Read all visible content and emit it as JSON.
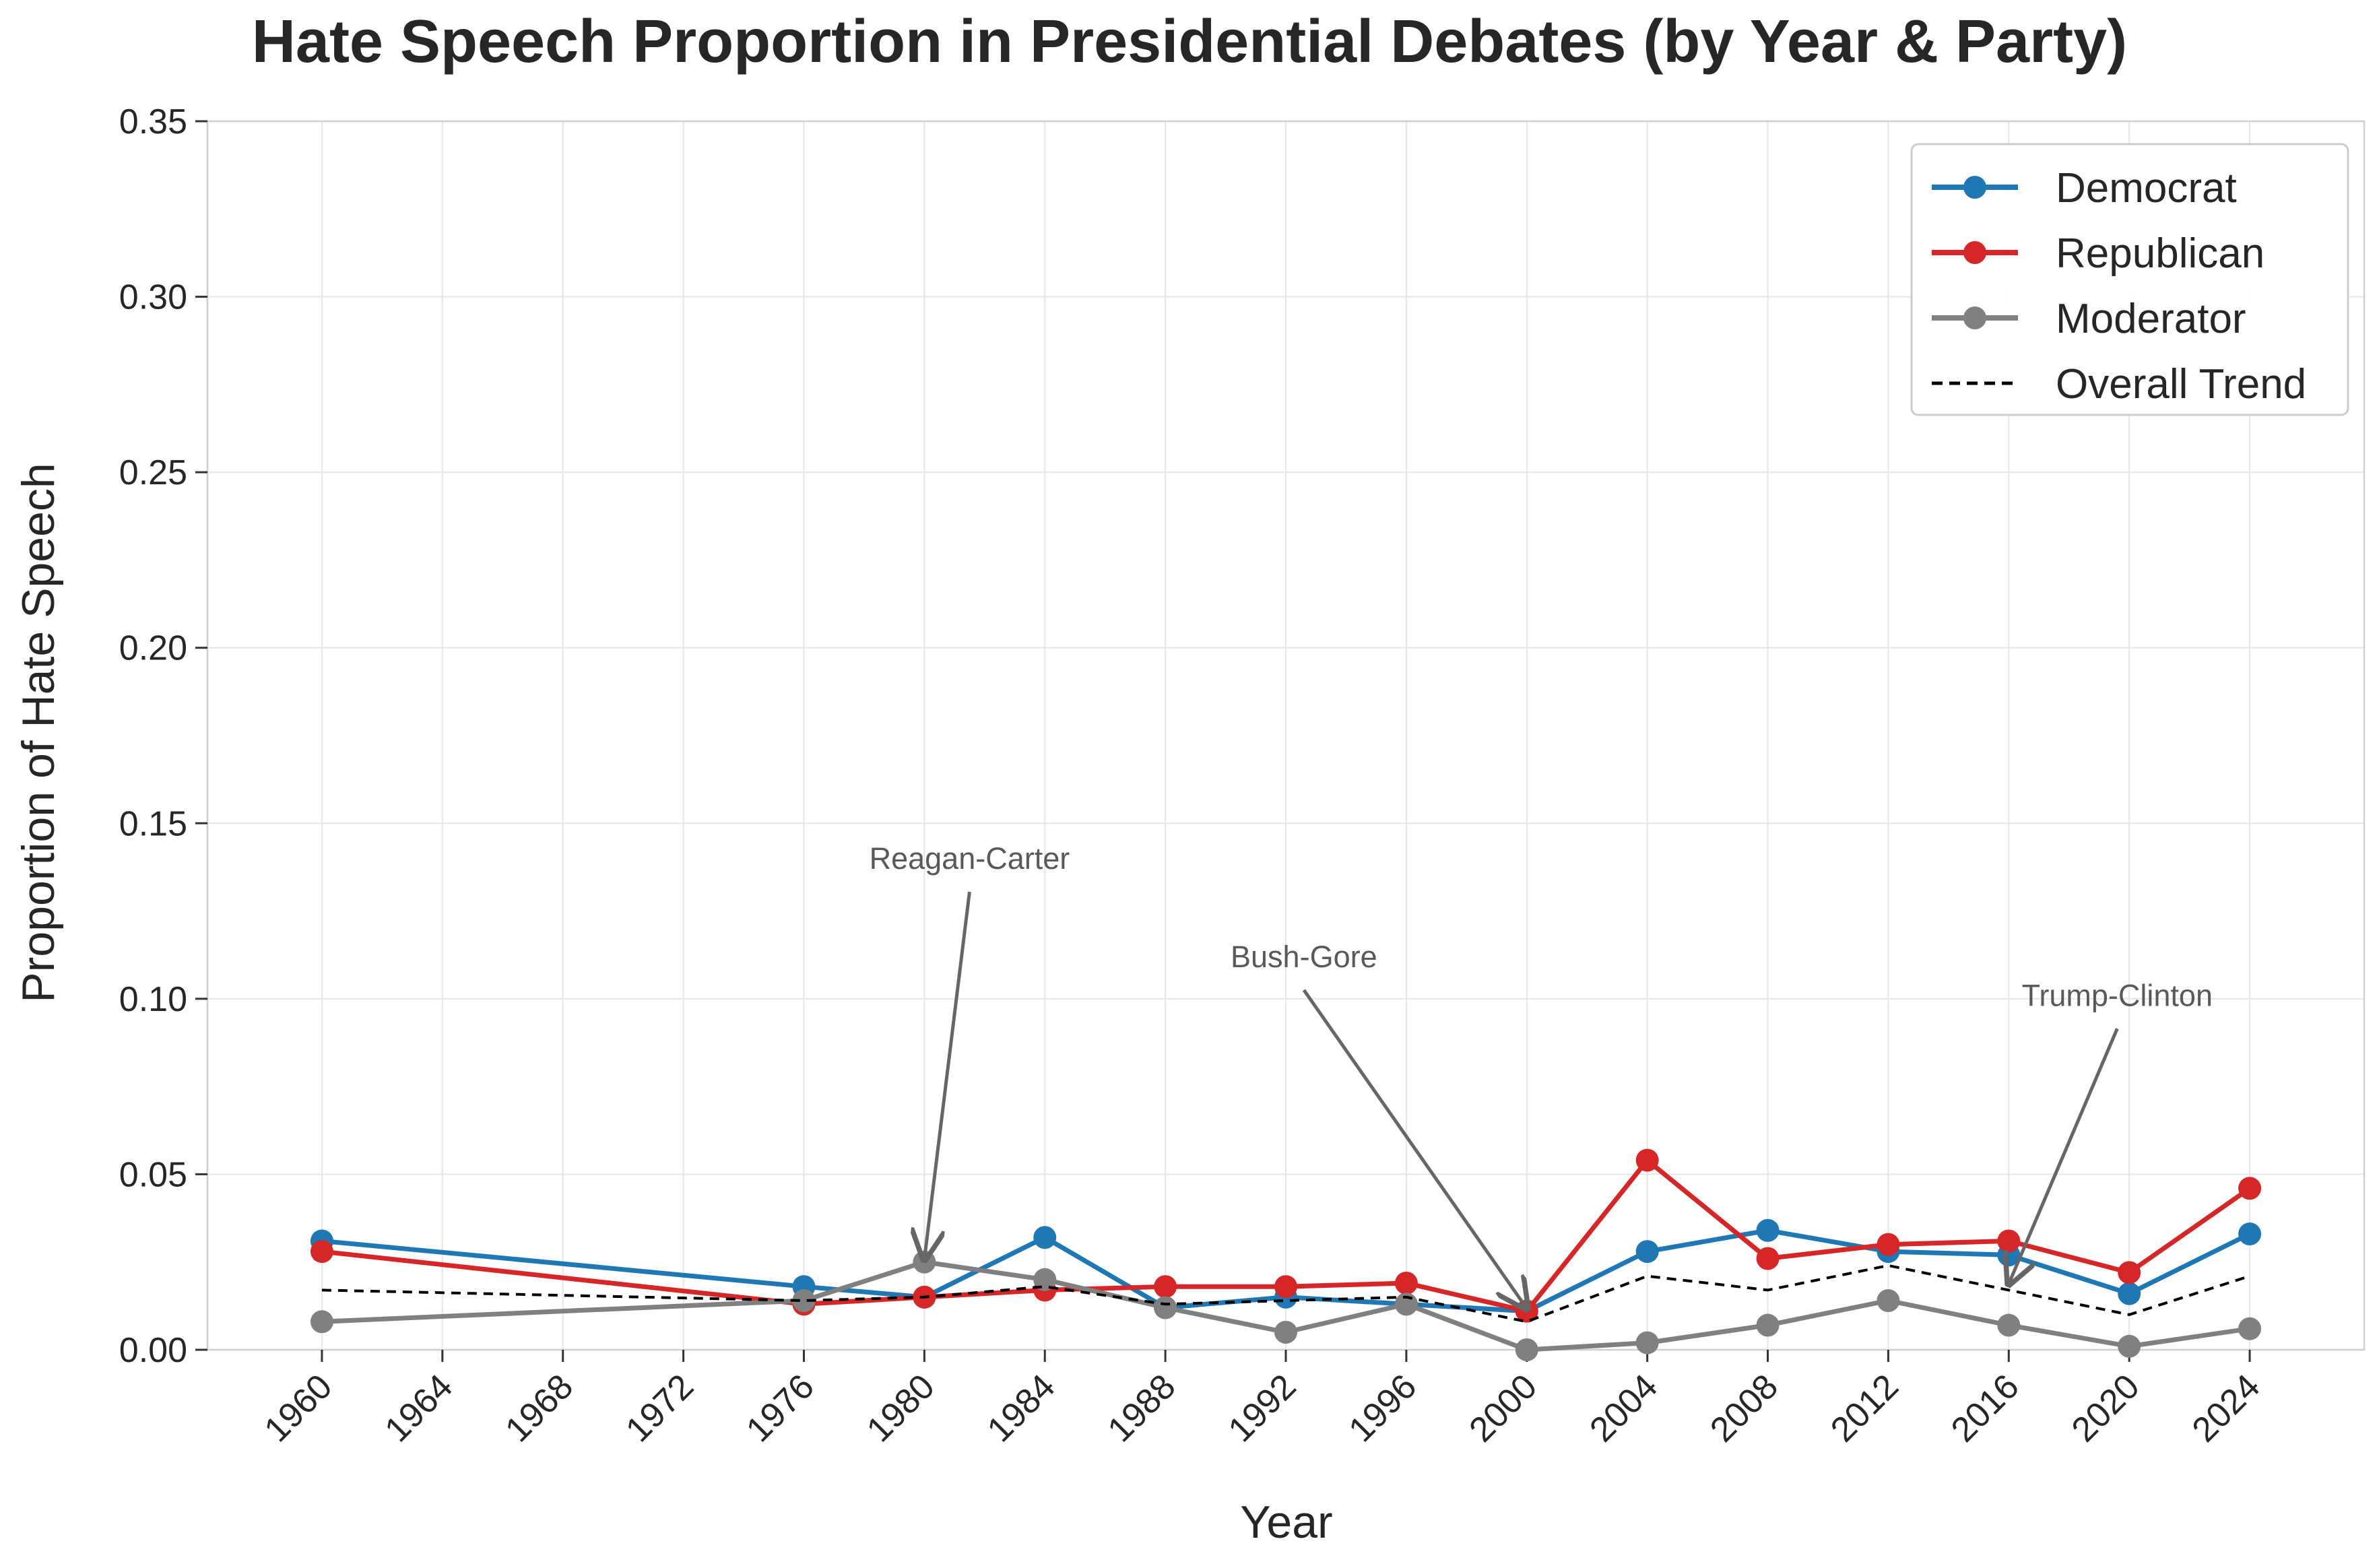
{
  "chart_data": {
    "type": "line",
    "title": "Hate Speech Proportion in Presidential Debates (by Year & Party)",
    "xlabel": "Year",
    "ylabel": "Proportion of Hate Speech",
    "xlim": [
      1956.2,
      2027.8
    ],
    "ylim": [
      0,
      0.35
    ],
    "x_ticks": [
      1960,
      1964,
      1968,
      1972,
      1976,
      1980,
      1984,
      1988,
      1992,
      1996,
      2000,
      2004,
      2008,
      2012,
      2016,
      2020,
      2024
    ],
    "y_ticks": [
      0.0,
      0.05,
      0.1,
      0.15,
      0.2,
      0.25,
      0.3,
      0.35
    ],
    "y_tick_labels": [
      "0.00",
      "0.05",
      "0.10",
      "0.15",
      "0.20",
      "0.25",
      "0.30",
      "0.35"
    ],
    "grid": true,
    "legend_position": "top-right",
    "colors": {
      "Democrat": "#1f77b4",
      "Republican": "#d62728",
      "Moderator": "#808080",
      "Overall Trend": "#000000"
    },
    "x": [
      1960,
      1976,
      1980,
      1984,
      1988,
      1992,
      1996,
      2000,
      2004,
      2008,
      2012,
      2016,
      2020,
      2024
    ],
    "series": [
      {
        "name": "Democrat",
        "style": "solid-marker",
        "values": [
          0.031,
          0.018,
          0.015,
          0.032,
          0.012,
          0.015,
          0.013,
          0.011,
          0.028,
          0.034,
          0.028,
          0.027,
          0.016,
          0.033
        ]
      },
      {
        "name": "Republican",
        "style": "solid-marker",
        "values": [
          0.028,
          0.013,
          0.015,
          0.017,
          0.018,
          0.018,
          0.019,
          0.011,
          0.054,
          0.026,
          0.03,
          0.031,
          0.022,
          0.046
        ]
      },
      {
        "name": "Moderator",
        "style": "solid-marker",
        "values": [
          0.008,
          0.014,
          0.025,
          0.02,
          0.012,
          0.005,
          0.013,
          0.0,
          0.002,
          0.007,
          0.014,
          0.007,
          0.001,
          0.006
        ]
      },
      {
        "name": "Overall Trend",
        "style": "dashed",
        "values": [
          0.017,
          0.014,
          0.015,
          0.018,
          0.013,
          0.014,
          0.015,
          0.008,
          0.021,
          0.017,
          0.024,
          0.017,
          0.01,
          0.021
        ]
      }
    ],
    "annotations": [
      {
        "text": "Reagan-Carter",
        "x": 1980,
        "y": 0.025,
        "text_x": 1981.5,
        "text_y": 0.137
      },
      {
        "text": "Bush-Gore",
        "x": 2000,
        "y": 0.011,
        "text_x": 1992.6,
        "text_y": 0.109
      },
      {
        "text": "Trump-Clinton",
        "x": 2016,
        "y": 0.018,
        "text_x": 2019.6,
        "text_y": 0.098
      }
    ]
  }
}
